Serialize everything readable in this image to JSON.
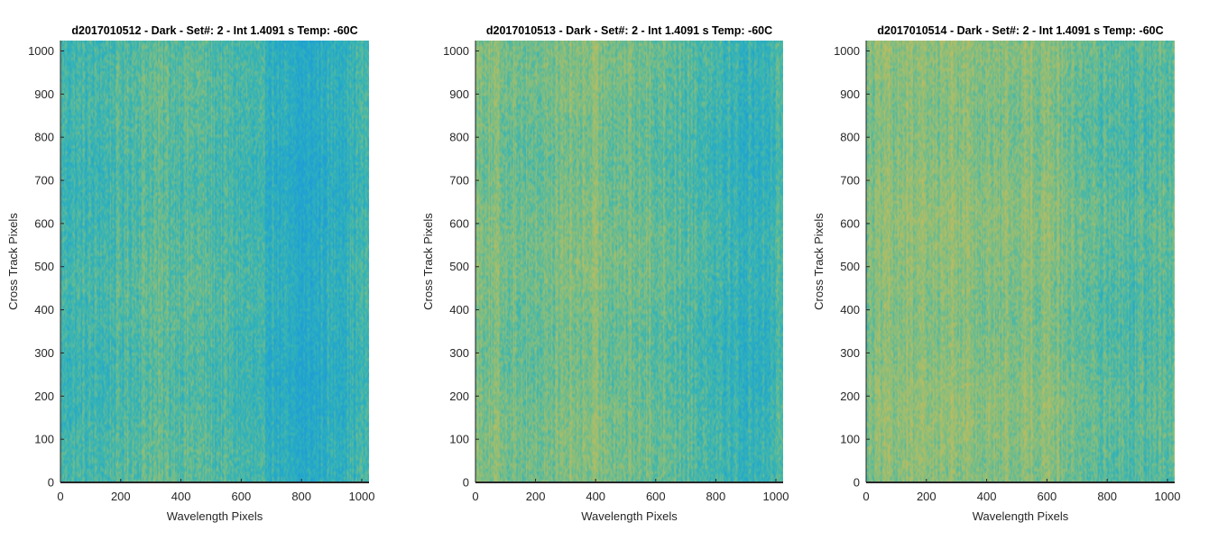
{
  "colors": {
    "colormap": [
      "#1f9bd8",
      "#24a9c9",
      "#3cb6b0",
      "#78bd86",
      "#a8be6a",
      "#c7bb5c"
    ],
    "axis": "#262626"
  },
  "chart_data": [
    {
      "type": "heatmap",
      "title": "d2017010512 - Dark - Set#: 2 - Int 1.4091 s Temp: -60C",
      "xlabel": "Wavelength Pixels",
      "ylabel": "Cross Track Pixels",
      "xlim": [
        0,
        1024
      ],
      "ylim": [
        0,
        1024
      ],
      "xticks": [
        0,
        200,
        400,
        600,
        800,
        1000
      ],
      "yticks": [
        0,
        100,
        200,
        300,
        400,
        500,
        600,
        700,
        800,
        900,
        1000
      ],
      "column_profile": [
        {
          "x": 0,
          "level": 0.4
        },
        {
          "x": 100,
          "level": 0.38
        },
        {
          "x": 200,
          "level": 0.44
        },
        {
          "x": 300,
          "level": 0.52
        },
        {
          "x": 400,
          "level": 0.5
        },
        {
          "x": 500,
          "level": 0.46
        },
        {
          "x": 600,
          "level": 0.4
        },
        {
          "x": 700,
          "level": 0.3
        },
        {
          "x": 800,
          "level": 0.16
        },
        {
          "x": 900,
          "level": 0.28
        },
        {
          "x": 1024,
          "level": 0.4
        }
      ]
    },
    {
      "type": "heatmap",
      "title": "d2017010513 - Dark - Set#: 2 - Int 1.4091 s Temp: -60C",
      "xlabel": "Wavelength Pixels",
      "ylabel": "Cross Track Pixels",
      "xlim": [
        0,
        1024
      ],
      "ylim": [
        0,
        1024
      ],
      "xticks": [
        0,
        200,
        400,
        600,
        800,
        1000
      ],
      "yticks": [
        0,
        100,
        200,
        300,
        400,
        500,
        600,
        700,
        800,
        900,
        1000
      ],
      "column_profile": [
        {
          "x": 0,
          "level": 0.66
        },
        {
          "x": 100,
          "level": 0.6
        },
        {
          "x": 200,
          "level": 0.56
        },
        {
          "x": 300,
          "level": 0.62
        },
        {
          "x": 400,
          "level": 0.64
        },
        {
          "x": 500,
          "level": 0.58
        },
        {
          "x": 600,
          "level": 0.56
        },
        {
          "x": 700,
          "level": 0.48
        },
        {
          "x": 800,
          "level": 0.42
        },
        {
          "x": 900,
          "level": 0.3
        },
        {
          "x": 1024,
          "level": 0.4
        }
      ]
    },
    {
      "type": "heatmap",
      "title": "d2017010514 - Dark - Set#: 2 - Int 1.4091 s Temp: -60C",
      "xlabel": "Wavelength Pixels",
      "ylabel": "Cross Track Pixels",
      "xlim": [
        0,
        1024
      ],
      "ylim": [
        0,
        1024
      ],
      "xticks": [
        0,
        200,
        400,
        600,
        800,
        1000
      ],
      "yticks": [
        0,
        100,
        200,
        300,
        400,
        500,
        600,
        700,
        800,
        900,
        1000
      ],
      "column_profile": [
        {
          "x": 0,
          "level": 0.62
        },
        {
          "x": 100,
          "level": 0.7
        },
        {
          "x": 200,
          "level": 0.66
        },
        {
          "x": 300,
          "level": 0.72
        },
        {
          "x": 400,
          "level": 0.64
        },
        {
          "x": 500,
          "level": 0.66
        },
        {
          "x": 600,
          "level": 0.7
        },
        {
          "x": 700,
          "level": 0.56
        },
        {
          "x": 800,
          "level": 0.5
        },
        {
          "x": 900,
          "level": 0.48
        },
        {
          "x": 1024,
          "level": 0.5
        }
      ]
    }
  ]
}
